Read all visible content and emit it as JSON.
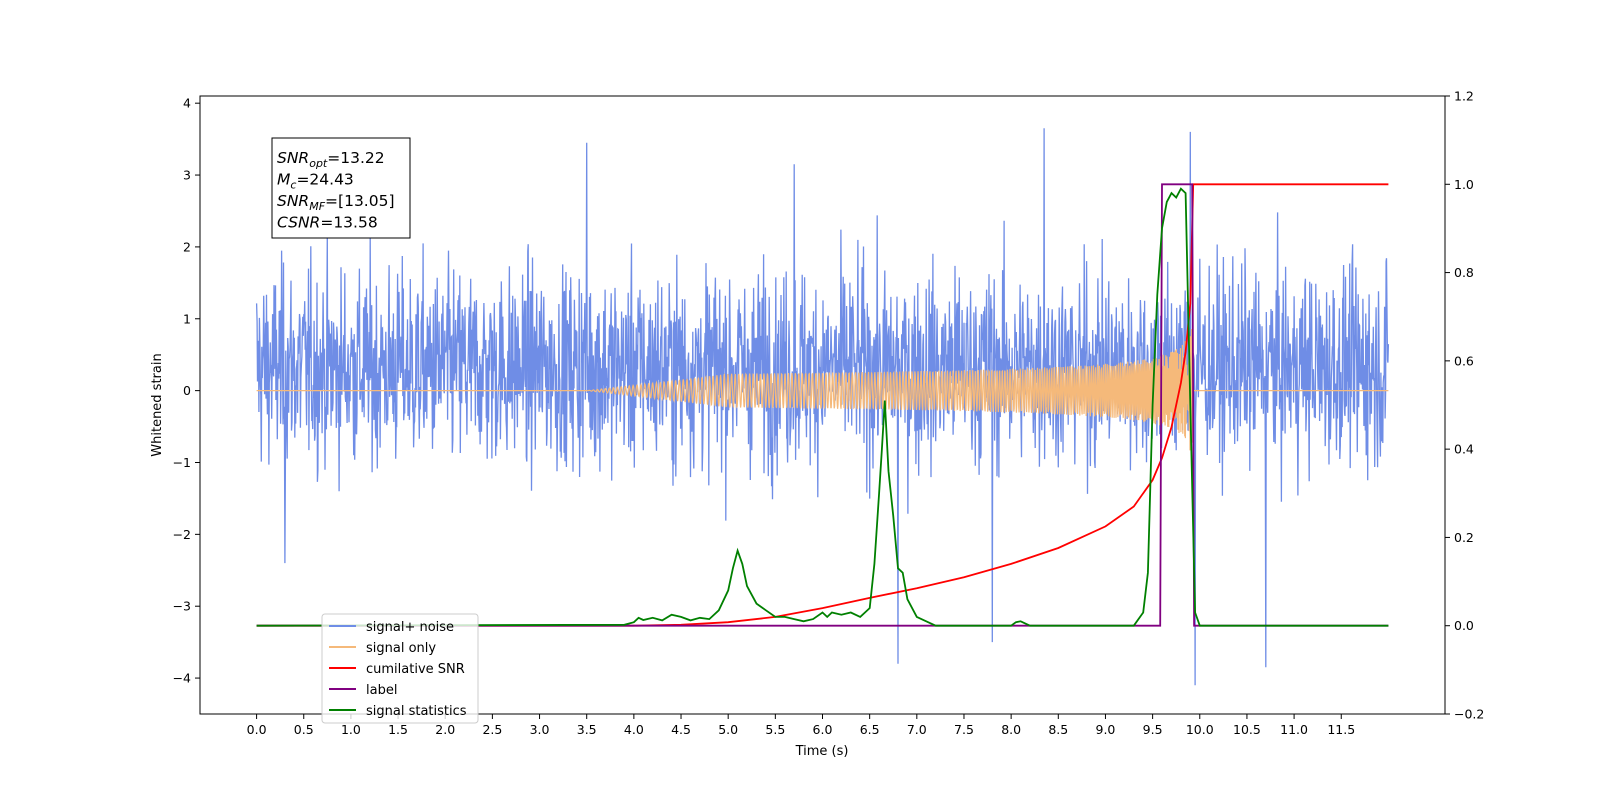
{
  "chart_data": {
    "type": "line",
    "xlabel": "Time (s)",
    "ylabel_left": "Whitened strain",
    "ylabel_right": "",
    "xlim": [
      -0.6,
      12.6
    ],
    "ylim_left": [
      -4.5,
      4.1
    ],
    "ylim_right": [
      -0.2,
      1.2
    ],
    "x_ticks": [
      "0.0",
      "0.5",
      "1.0",
      "1.5",
      "2.0",
      "2.5",
      "3.0",
      "3.5",
      "4.0",
      "4.5",
      "5.0",
      "5.5",
      "6.0",
      "6.5",
      "7.0",
      "7.5",
      "8.0",
      "8.5",
      "9.0",
      "9.5",
      "10.0",
      "10.5",
      "11.0",
      "11.5"
    ],
    "y_ticks_left": [
      "−4",
      "−3",
      "−2",
      "−1",
      "0",
      "1",
      "2",
      "3",
      "4"
    ],
    "y_ticks_right": [
      "−0.2",
      "0.0",
      "0.2",
      "0.4",
      "0.6",
      "0.8",
      "1.0",
      "1.2"
    ],
    "grid": false,
    "legend_position": "lower-left",
    "annotation_box": {
      "lines": [
        {
          "name": "SNR",
          "sub": "opt",
          "value": "=13.22"
        },
        {
          "name": "M",
          "sub": "c",
          "value": "=24.43"
        },
        {
          "name": "SNR",
          "sub": "MF",
          "value": "=[13.05]"
        },
        {
          "name": "CSNR",
          "sub": "",
          "value": "=13.58"
        }
      ]
    },
    "series": [
      {
        "name": "signal+ noise",
        "axis": "left",
        "color": "#6f8de6",
        "style": "noise",
        "x_range": [
          0.0,
          12.0
        ],
        "envelope_low": -1.6,
        "envelope_high": 2.2,
        "x_peaks": [
          [
            3.5,
            3.45
          ],
          [
            5.7,
            3.15
          ],
          [
            8.35,
            3.65
          ],
          [
            9.9,
            3.6
          ]
        ],
        "y_troughs": [
          [
            0.3,
            -2.4
          ],
          [
            6.8,
            -3.8
          ],
          [
            7.8,
            -3.5
          ],
          [
            9.95,
            -4.1
          ],
          [
            10.7,
            -3.85
          ]
        ]
      },
      {
        "name": "signal only",
        "axis": "left",
        "color": "#f5b97a",
        "style": "chirp",
        "x_range": [
          0.0,
          12.0
        ],
        "merger_time": 9.93,
        "peak_amplitude": 1.1
      },
      {
        "name": "cumilative SNR",
        "axis": "right",
        "color": "#ff0000",
        "x": [
          0.0,
          4.0,
          4.5,
          5.0,
          5.5,
          6.0,
          6.5,
          7.0,
          7.5,
          8.0,
          8.5,
          9.0,
          9.3,
          9.5,
          9.6,
          9.7,
          9.8,
          9.85,
          9.9,
          9.93,
          9.95,
          12.0
        ],
        "y": [
          0.0,
          0.0,
          0.002,
          0.008,
          0.02,
          0.04,
          0.063,
          0.085,
          0.11,
          0.14,
          0.176,
          0.225,
          0.27,
          0.33,
          0.38,
          0.45,
          0.55,
          0.62,
          0.73,
          1.0,
          1.0,
          1.0
        ]
      },
      {
        "name": "label",
        "axis": "right",
        "color": "#800080",
        "x": [
          0.0,
          9.58,
          9.6,
          9.92,
          9.94,
          12.0
        ],
        "y": [
          0.0,
          0.0,
          1.0,
          1.0,
          0.0,
          0.0
        ]
      },
      {
        "name": "signal statistics",
        "axis": "right",
        "color": "#008000",
        "x": [
          0.0,
          3.9,
          4.0,
          4.05,
          4.1,
          4.2,
          4.3,
          4.4,
          4.5,
          4.6,
          4.7,
          4.8,
          4.9,
          5.0,
          5.05,
          5.1,
          5.15,
          5.2,
          5.3,
          5.4,
          5.5,
          5.6,
          5.7,
          5.8,
          5.9,
          6.0,
          6.05,
          6.1,
          6.2,
          6.3,
          6.4,
          6.5,
          6.55,
          6.6,
          6.63,
          6.66,
          6.7,
          6.75,
          6.8,
          6.85,
          6.9,
          7.0,
          7.1,
          7.2,
          7.5,
          7.9,
          8.0,
          8.05,
          8.1,
          8.2,
          9.3,
          9.4,
          9.45,
          9.5,
          9.55,
          9.6,
          9.65,
          9.7,
          9.75,
          9.8,
          9.85,
          9.9,
          9.95,
          10.0,
          12.0
        ],
        "y": [
          0.0,
          0.002,
          0.008,
          0.018,
          0.013,
          0.018,
          0.012,
          0.025,
          0.02,
          0.012,
          0.018,
          0.015,
          0.035,
          0.08,
          0.13,
          0.17,
          0.14,
          0.09,
          0.05,
          0.035,
          0.02,
          0.02,
          0.015,
          0.01,
          0.015,
          0.03,
          0.02,
          0.03,
          0.025,
          0.03,
          0.02,
          0.04,
          0.14,
          0.3,
          0.4,
          0.51,
          0.35,
          0.25,
          0.13,
          0.12,
          0.06,
          0.02,
          0.01,
          0.0,
          0.0,
          0.0,
          0.0,
          0.008,
          0.01,
          0.0,
          0.0,
          0.03,
          0.12,
          0.5,
          0.75,
          0.9,
          0.96,
          0.98,
          0.97,
          0.99,
          0.98,
          0.5,
          0.03,
          0.0,
          0.0
        ]
      }
    ]
  }
}
